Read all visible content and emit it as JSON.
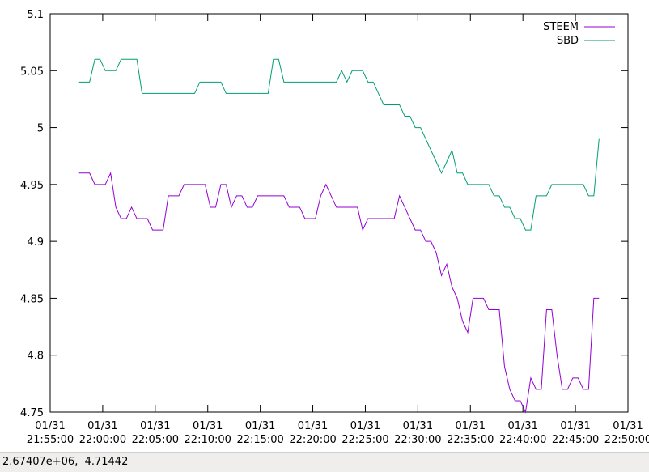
{
  "chart_data": {
    "type": "line",
    "x": [
      "21:57:45",
      "21:58:15",
      "21:58:45",
      "21:59:15",
      "21:59:45",
      "22:00:15",
      "22:00:45",
      "22:01:15",
      "22:01:45",
      "22:02:15",
      "22:02:45",
      "22:03:15",
      "22:03:45",
      "22:04:15",
      "22:04:45",
      "22:05:15",
      "22:05:45",
      "22:06:15",
      "22:06:45",
      "22:07:15",
      "22:07:45",
      "22:08:15",
      "22:08:45",
      "22:09:15",
      "22:09:45",
      "22:10:15",
      "22:10:45",
      "22:11:15",
      "22:11:45",
      "22:12:15",
      "22:12:45",
      "22:13:15",
      "22:13:45",
      "22:14:15",
      "22:14:45",
      "22:15:15",
      "22:15:45",
      "22:16:15",
      "22:16:45",
      "22:17:15",
      "22:17:45",
      "22:18:15",
      "22:18:45",
      "22:19:15",
      "22:19:45",
      "22:20:15",
      "22:20:45",
      "22:21:15",
      "22:21:45",
      "22:22:15",
      "22:22:45",
      "22:23:15",
      "22:23:45",
      "22:24:15",
      "22:24:45",
      "22:25:15",
      "22:25:45",
      "22:26:15",
      "22:26:45",
      "22:27:15",
      "22:27:45",
      "22:28:15",
      "22:28:45",
      "22:29:15",
      "22:29:45",
      "22:30:15",
      "22:30:45",
      "22:31:15",
      "22:31:45",
      "22:32:15",
      "22:32:45",
      "22:33:15",
      "22:33:45",
      "22:34:15",
      "22:34:45",
      "22:35:15",
      "22:35:45",
      "22:36:15",
      "22:36:45",
      "22:37:15",
      "22:37:45",
      "22:38:15",
      "22:38:45",
      "22:39:15",
      "22:39:45",
      "22:40:15",
      "22:40:45",
      "22:41:15",
      "22:41:45",
      "22:42:15",
      "22:42:45",
      "22:43:15",
      "22:43:45",
      "22:44:15",
      "22:44:45",
      "22:45:15",
      "22:45:45",
      "22:46:15",
      "22:46:45",
      "22:47:15"
    ],
    "series": [
      {
        "name": "STEEM",
        "color": "#9400d3",
        "values": [
          4.96,
          4.96,
          4.96,
          4.95,
          4.95,
          4.95,
          4.96,
          4.93,
          4.92,
          4.92,
          4.93,
          4.92,
          4.92,
          4.92,
          4.91,
          4.91,
          4.91,
          4.94,
          4.94,
          4.94,
          4.95,
          4.95,
          4.95,
          4.95,
          4.95,
          4.93,
          4.93,
          4.95,
          4.95,
          4.93,
          4.94,
          4.94,
          4.93,
          4.93,
          4.94,
          4.94,
          4.94,
          4.94,
          4.94,
          4.94,
          4.93,
          4.93,
          4.93,
          4.92,
          4.92,
          4.92,
          4.94,
          4.95,
          4.94,
          4.93,
          4.93,
          4.93,
          4.93,
          4.93,
          4.91,
          4.92,
          4.92,
          4.92,
          4.92,
          4.92,
          4.92,
          4.94,
          4.93,
          4.92,
          4.91,
          4.91,
          4.9,
          4.9,
          4.89,
          4.87,
          4.88,
          4.86,
          4.85,
          4.83,
          4.82,
          4.85,
          4.85,
          4.85,
          4.84,
          4.84,
          4.84,
          4.79,
          4.77,
          4.76,
          4.76,
          4.75,
          4.78,
          4.77,
          4.77,
          4.84,
          4.84,
          4.8,
          4.77,
          4.77,
          4.78,
          4.78,
          4.77,
          4.77,
          4.85,
          4.85
        ]
      },
      {
        "name": "SBD",
        "color": "#009e73",
        "values": [
          5.04,
          5.04,
          5.04,
          5.06,
          5.06,
          5.05,
          5.05,
          5.05,
          5.06,
          5.06,
          5.06,
          5.06,
          5.03,
          5.03,
          5.03,
          5.03,
          5.03,
          5.03,
          5.03,
          5.03,
          5.03,
          5.03,
          5.03,
          5.04,
          5.04,
          5.04,
          5.04,
          5.04,
          5.03,
          5.03,
          5.03,
          5.03,
          5.03,
          5.03,
          5.03,
          5.03,
          5.03,
          5.06,
          5.06,
          5.04,
          5.04,
          5.04,
          5.04,
          5.04,
          5.04,
          5.04,
          5.04,
          5.04,
          5.04,
          5.04,
          5.05,
          5.04,
          5.05,
          5.05,
          5.05,
          5.04,
          5.04,
          5.03,
          5.02,
          5.02,
          5.02,
          5.02,
          5.01,
          5.01,
          5,
          5,
          4.99,
          4.98,
          4.97,
          4.96,
          4.97,
          4.98,
          4.96,
          4.96,
          4.95,
          4.95,
          4.95,
          4.95,
          4.95,
          4.94,
          4.94,
          4.93,
          4.93,
          4.92,
          4.92,
          4.91,
          4.91,
          4.94,
          4.94,
          4.94,
          4.95,
          4.95,
          4.95,
          4.95,
          4.95,
          4.95,
          4.95,
          4.94,
          4.94,
          4.99
        ]
      }
    ],
    "xlim": [
      "21:55:00",
      "22:50:00"
    ],
    "xticks": [
      {
        "value": "21:55:00",
        "label": "01/31\n21:55:00"
      },
      {
        "value": "22:00:00",
        "label": "01/31\n22:00:00"
      },
      {
        "value": "22:05:00",
        "label": "01/31\n22:05:00"
      },
      {
        "value": "22:10:00",
        "label": "01/31\n22:10:00"
      },
      {
        "value": "22:15:00",
        "label": "01/31\n22:15:00"
      },
      {
        "value": "22:20:00",
        "label": "01/31\n22:20:00"
      },
      {
        "value": "22:25:00",
        "label": "01/31\n22:25:00"
      },
      {
        "value": "22:30:00",
        "label": "01/31\n22:30:00"
      },
      {
        "value": "22:35:00",
        "label": "01/31\n22:35:00"
      },
      {
        "value": "22:40:00",
        "label": "01/31\n22:40:00"
      },
      {
        "value": "22:45:00",
        "label": "01/31\n22:45:00"
      },
      {
        "value": "22:50:00",
        "label": "01/31\n22:50:00"
      }
    ],
    "ylim": [
      4.75,
      5.1
    ],
    "yticks": [
      4.75,
      4.8,
      4.85,
      4.9,
      4.95,
      5,
      5.05,
      5.1
    ],
    "grid": false,
    "legend": "top-right"
  },
  "status_bar": "2.67407e+06,  4.71442"
}
